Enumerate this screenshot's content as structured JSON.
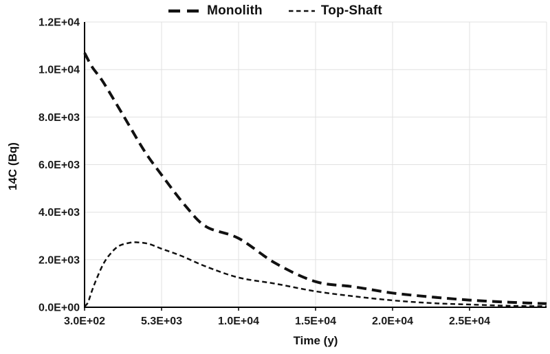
{
  "chart_data": {
    "type": "line",
    "title": "",
    "xlabel": "Time (y)",
    "ylabel": "14C (Bq)",
    "xlim": [
      300,
      30300
    ],
    "ylim": [
      0,
      12000
    ],
    "grid": true,
    "legend_position": "top-center",
    "background_color": "#ffffff",
    "grid_color": "#e0e0e0",
    "axis_color": "#000000",
    "text_color": "#1a1a1a",
    "x_ticks": [
      300,
      5300,
      10300,
      15300,
      20300,
      25300
    ],
    "x_tick_labels": [
      "3.0E+02",
      "5.3E+03",
      "1.0E+04",
      "1.5E+04",
      "2.0E+04",
      "2.5E+04"
    ],
    "y_ticks": [
      0,
      2000,
      4000,
      6000,
      8000,
      10000,
      12000
    ],
    "y_tick_labels": [
      "0.0E+00",
      "2.0E+03",
      "4.0E+03",
      "6.0E+03",
      "8.0E+03",
      "1.0E+04",
      "1.2E+04"
    ],
    "series": [
      {
        "name": "Monolith",
        "color": "#111111",
        "dash_style": "long-dash",
        "points": [
          [
            300,
            10700
          ],
          [
            800,
            10100
          ],
          [
            1500,
            9480
          ],
          [
            2850,
            8030
          ],
          [
            4180,
            6580
          ],
          [
            5300,
            5570
          ],
          [
            6860,
            4260
          ],
          [
            8200,
            3390
          ],
          [
            10300,
            2900
          ],
          [
            12700,
            1850
          ],
          [
            15300,
            1080
          ],
          [
            17800,
            860
          ],
          [
            20300,
            600
          ],
          [
            22800,
            435
          ],
          [
            25300,
            300
          ],
          [
            27900,
            210
          ],
          [
            30300,
            150
          ]
        ]
      },
      {
        "name": "Top-Shaft",
        "color": "#111111",
        "dash_style": "short-dash",
        "points": [
          [
            300,
            30
          ],
          [
            520,
            200
          ],
          [
            750,
            640
          ],
          [
            1060,
            1160
          ],
          [
            1500,
            1800
          ],
          [
            1950,
            2230
          ],
          [
            2530,
            2580
          ],
          [
            3290,
            2720
          ],
          [
            3740,
            2730
          ],
          [
            4450,
            2670
          ],
          [
            5300,
            2460
          ],
          [
            6550,
            2170
          ],
          [
            8200,
            1710
          ],
          [
            10300,
            1250
          ],
          [
            12700,
            990
          ],
          [
            15300,
            670
          ],
          [
            17800,
            460
          ],
          [
            20300,
            290
          ],
          [
            22800,
            175
          ],
          [
            25300,
            115
          ],
          [
            27900,
            60
          ],
          [
            30300,
            40
          ]
        ]
      }
    ]
  }
}
